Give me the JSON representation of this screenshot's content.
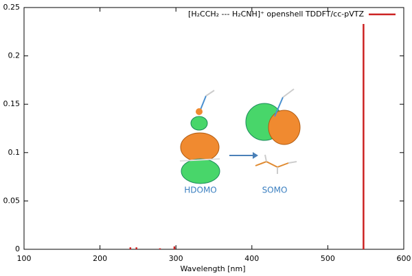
{
  "chart_data": {
    "type": "impulse",
    "x": [
      240,
      248,
      279,
      298,
      547
    ],
    "series": [
      {
        "name": "[H₂CCH₂ --- H₂CNH]⁺ openshell TDDFT/cc-pVTZ",
        "color": "#cc2020",
        "values": [
          0.002,
          0.002,
          0.001,
          0.003,
          0.233
        ]
      }
    ],
    "xlabel": "Wavelength [nm]",
    "xlim": [
      100,
      600
    ],
    "xticks": [
      100,
      200,
      300,
      400,
      500,
      600
    ],
    "ylim": [
      0,
      0.25
    ],
    "yticks": [
      0,
      0.05,
      0.1,
      0.15,
      0.2,
      0.25
    ],
    "legend": "top-right",
    "annotations": [
      "HDOMO",
      "SOMO"
    ]
  }
}
